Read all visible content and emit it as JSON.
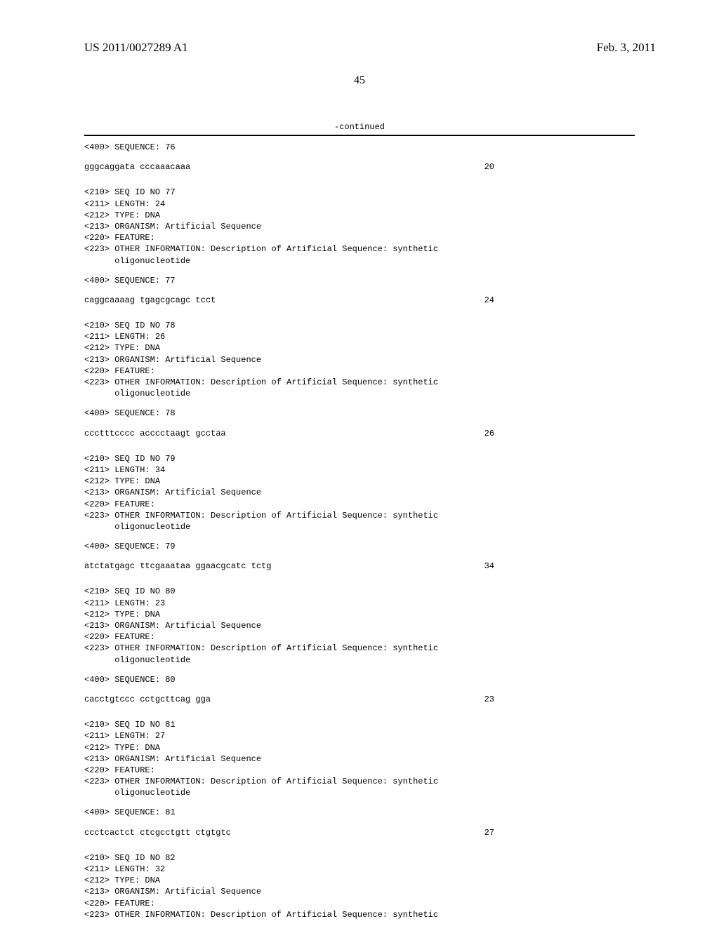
{
  "header": {
    "pub_number": "US 2011/0027289 A1",
    "pub_date": "Feb. 3, 2011"
  },
  "page_number": "45",
  "continued_label": "-continued",
  "sequences": [
    {
      "pre": "<400> SEQUENCE: 76",
      "seq": "gggcaggata cccaaacaaa",
      "len": "20"
    },
    {
      "header": [
        "<210> SEQ ID NO 77",
        "<211> LENGTH: 24",
        "<212> TYPE: DNA",
        "<213> ORGANISM: Artificial Sequence",
        "<220> FEATURE:",
        "<223> OTHER INFORMATION: Description of Artificial Sequence: synthetic"
      ],
      "header_indent": "oligonucleotide",
      "pre": "<400> SEQUENCE: 77",
      "seq": "caggcaaaag tgagcgcagc tcct",
      "len": "24"
    },
    {
      "header": [
        "<210> SEQ ID NO 78",
        "<211> LENGTH: 26",
        "<212> TYPE: DNA",
        "<213> ORGANISM: Artificial Sequence",
        "<220> FEATURE:",
        "<223> OTHER INFORMATION: Description of Artificial Sequence: synthetic"
      ],
      "header_indent": "oligonucleotide",
      "pre": "<400> SEQUENCE: 78",
      "seq": "ccctttcccc acccctaagt gcctaa",
      "len": "26"
    },
    {
      "header": [
        "<210> SEQ ID NO 79",
        "<211> LENGTH: 34",
        "<212> TYPE: DNA",
        "<213> ORGANISM: Artificial Sequence",
        "<220> FEATURE:",
        "<223> OTHER INFORMATION: Description of Artificial Sequence: synthetic"
      ],
      "header_indent": "oligonucleotide",
      "pre": "<400> SEQUENCE: 79",
      "seq": "atctatgagc ttcgaaataa ggaacgcatc tctg",
      "len": "34"
    },
    {
      "header": [
        "<210> SEQ ID NO 80",
        "<211> LENGTH: 23",
        "<212> TYPE: DNA",
        "<213> ORGANISM: Artificial Sequence",
        "<220> FEATURE:",
        "<223> OTHER INFORMATION: Description of Artificial Sequence: synthetic"
      ],
      "header_indent": "oligonucleotide",
      "pre": "<400> SEQUENCE: 80",
      "seq": "cacctgtccc cctgcttcag gga",
      "len": "23"
    },
    {
      "header": [
        "<210> SEQ ID NO 81",
        "<211> LENGTH: 27",
        "<212> TYPE: DNA",
        "<213> ORGANISM: Artificial Sequence",
        "<220> FEATURE:",
        "<223> OTHER INFORMATION: Description of Artificial Sequence: synthetic"
      ],
      "header_indent": "oligonucleotide",
      "pre": "<400> SEQUENCE: 81",
      "seq": "ccctcactct ctcgcctgtt ctgtgtc",
      "len": "27"
    },
    {
      "header": [
        "<210> SEQ ID NO 82",
        "<211> LENGTH: 32",
        "<212> TYPE: DNA",
        "<213> ORGANISM: Artificial Sequence",
        "<220> FEATURE:",
        "<223> OTHER INFORMATION: Description of Artificial Sequence: synthetic"
      ]
    }
  ]
}
